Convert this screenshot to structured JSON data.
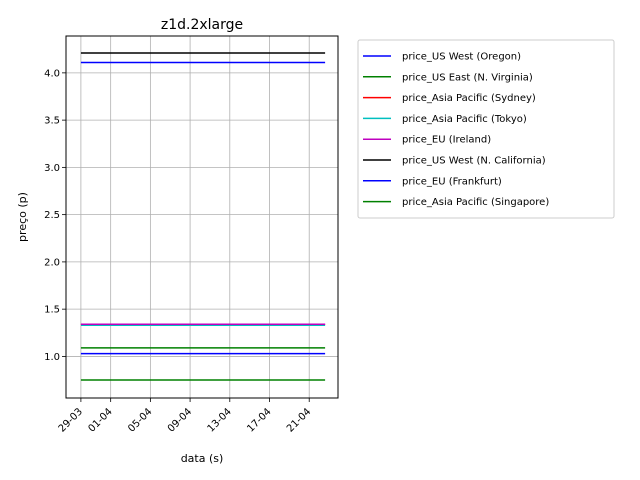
{
  "chart_data": {
    "type": "line",
    "title": "z1d.2xlarge",
    "xlabel": "data (s)",
    "ylabel": "preço (p)",
    "x_tick_labels": [
      "29-03",
      "01-04",
      "05-04",
      "09-04",
      "13-04",
      "17-04",
      "21-04"
    ],
    "x_tick_days": [
      0,
      3,
      7,
      11,
      15,
      19,
      23
    ],
    "x_range_days": [
      -1.5,
      25.9
    ],
    "x": [
      "29-03",
      "24-04"
    ],
    "x_days": [
      0,
      24.6
    ],
    "ylim": [
      0.56,
      4.39
    ],
    "yticks": [
      1.0,
      1.5,
      2.0,
      2.5,
      3.0,
      3.5,
      4.0
    ],
    "ytick_labels": [
      "1.0",
      "1.5",
      "2.0",
      "2.5",
      "3.0",
      "3.5",
      "4.0"
    ],
    "grid": true,
    "legend_position": "outside-right",
    "series": [
      {
        "name": "price_US West (Oregon)",
        "color": "#0000ff",
        "values": [
          4.11,
          4.11
        ]
      },
      {
        "name": "price_US East (N. Virginia)",
        "color": "#008000",
        "values": [
          1.09,
          1.09
        ]
      },
      {
        "name": "price_Asia Pacific (Sydney)",
        "color": "#ff0000",
        "values": [
          1.34,
          1.34
        ]
      },
      {
        "name": "price_Asia Pacific (Tokyo)",
        "color": "#00bfbf",
        "values": [
          1.33,
          1.33
        ]
      },
      {
        "name": "price_EU (Ireland)",
        "color": "#bf00bf",
        "values": [
          1.34,
          1.34
        ]
      },
      {
        "name": "price_US West (N. California)",
        "color": "#000000",
        "values": [
          4.21,
          4.21
        ]
      },
      {
        "name": "price_EU (Frankfurt)",
        "color": "#0000ff",
        "values": [
          1.03,
          1.03
        ]
      },
      {
        "name": "price_Asia Pacific (Singapore)",
        "color": "#008000",
        "values": [
          0.75,
          0.75
        ]
      }
    ]
  }
}
